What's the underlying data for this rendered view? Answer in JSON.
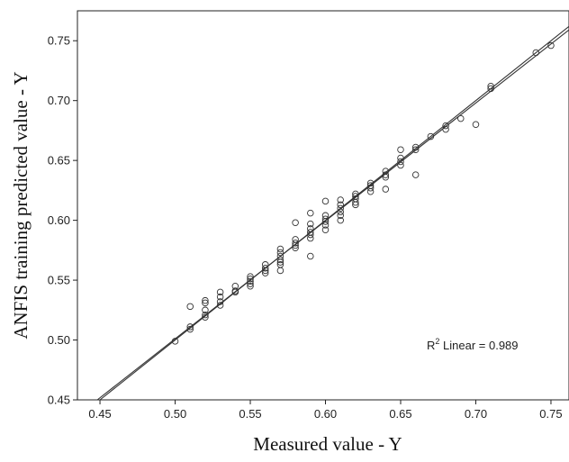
{
  "chart_data": {
    "type": "scatter",
    "xlabel": "Measured value - Y",
    "ylabel": "ANFIS training predicted value - Y",
    "xlim": [
      0.435,
      0.762
    ],
    "ylim": [
      0.45,
      0.775
    ],
    "xticks": [
      "0.45",
      "0.50",
      "0.55",
      "0.60",
      "0.65",
      "0.70",
      "0.75"
    ],
    "xtick_values": [
      0.45,
      0.5,
      0.55,
      0.6,
      0.65,
      0.7,
      0.75
    ],
    "yticks": [
      "0.45",
      "0.50",
      "0.55",
      "0.60",
      "0.65",
      "0.70",
      "0.75"
    ],
    "ytick_values": [
      0.45,
      0.5,
      0.55,
      0.6,
      0.65,
      0.7,
      0.75
    ],
    "annotation": {
      "prefix": "R",
      "sup": "2",
      "suffix": " Linear = 0.989"
    },
    "grid": false,
    "fit_lines": [
      {
        "slope": 1.0,
        "intercept": 0.0
      },
      {
        "slope": 0.985,
        "intercept": 0.0085
      }
    ],
    "points": [
      [
        0.5,
        0.499
      ],
      [
        0.51,
        0.528
      ],
      [
        0.51,
        0.511
      ],
      [
        0.51,
        0.509
      ],
      [
        0.52,
        0.533
      ],
      [
        0.52,
        0.531
      ],
      [
        0.52,
        0.525
      ],
      [
        0.52,
        0.521
      ],
      [
        0.52,
        0.519
      ],
      [
        0.53,
        0.54
      ],
      [
        0.53,
        0.536
      ],
      [
        0.53,
        0.532
      ],
      [
        0.53,
        0.529
      ],
      [
        0.54,
        0.545
      ],
      [
        0.54,
        0.541
      ],
      [
        0.54,
        0.54
      ],
      [
        0.55,
        0.553
      ],
      [
        0.55,
        0.551
      ],
      [
        0.55,
        0.549
      ],
      [
        0.55,
        0.547
      ],
      [
        0.55,
        0.545
      ],
      [
        0.56,
        0.563
      ],
      [
        0.56,
        0.56
      ],
      [
        0.56,
        0.558
      ],
      [
        0.56,
        0.556
      ],
      [
        0.57,
        0.576
      ],
      [
        0.57,
        0.573
      ],
      [
        0.57,
        0.57
      ],
      [
        0.57,
        0.567
      ],
      [
        0.57,
        0.565
      ],
      [
        0.57,
        0.563
      ],
      [
        0.57,
        0.558
      ],
      [
        0.58,
        0.598
      ],
      [
        0.58,
        0.584
      ],
      [
        0.58,
        0.581
      ],
      [
        0.58,
        0.579
      ],
      [
        0.58,
        0.577
      ],
      [
        0.59,
        0.606
      ],
      [
        0.59,
        0.597
      ],
      [
        0.59,
        0.593
      ],
      [
        0.59,
        0.59
      ],
      [
        0.59,
        0.588
      ],
      [
        0.59,
        0.585
      ],
      [
        0.59,
        0.57
      ],
      [
        0.6,
        0.616
      ],
      [
        0.6,
        0.604
      ],
      [
        0.6,
        0.601
      ],
      [
        0.6,
        0.599
      ],
      [
        0.6,
        0.596
      ],
      [
        0.6,
        0.592
      ],
      [
        0.61,
        0.617
      ],
      [
        0.61,
        0.613
      ],
      [
        0.61,
        0.61
      ],
      [
        0.61,
        0.607
      ],
      [
        0.61,
        0.604
      ],
      [
        0.61,
        0.6
      ],
      [
        0.62,
        0.622
      ],
      [
        0.62,
        0.62
      ],
      [
        0.62,
        0.618
      ],
      [
        0.62,
        0.615
      ],
      [
        0.62,
        0.613
      ],
      [
        0.63,
        0.631
      ],
      [
        0.63,
        0.629
      ],
      [
        0.63,
        0.627
      ],
      [
        0.63,
        0.624
      ],
      [
        0.64,
        0.641
      ],
      [
        0.64,
        0.638
      ],
      [
        0.64,
        0.636
      ],
      [
        0.64,
        0.626
      ],
      [
        0.65,
        0.659
      ],
      [
        0.65,
        0.652
      ],
      [
        0.65,
        0.649
      ],
      [
        0.65,
        0.646
      ],
      [
        0.66,
        0.661
      ],
      [
        0.66,
        0.659
      ],
      [
        0.66,
        0.638
      ],
      [
        0.67,
        0.67
      ],
      [
        0.68,
        0.679
      ],
      [
        0.68,
        0.676
      ],
      [
        0.69,
        0.685
      ],
      [
        0.7,
        0.68
      ],
      [
        0.71,
        0.712
      ],
      [
        0.71,
        0.71
      ],
      [
        0.74,
        0.74
      ],
      [
        0.75,
        0.746
      ]
    ]
  }
}
